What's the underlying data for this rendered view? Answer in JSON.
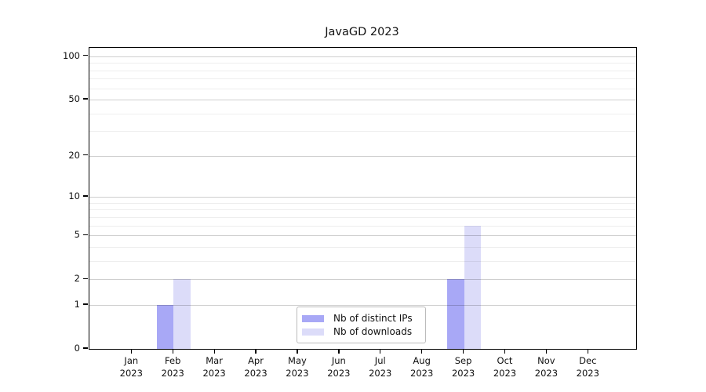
{
  "title": "JavaGD 2023",
  "chart_data": {
    "type": "bar",
    "title": "JavaGD 2023",
    "xlabel": "",
    "ylabel": "",
    "categories": [
      "Jan",
      "Feb",
      "Mar",
      "Apr",
      "May",
      "Jun",
      "Jul",
      "Aug",
      "Sep",
      "Oct",
      "Nov",
      "Dec"
    ],
    "category_year": "2023",
    "series": [
      {
        "name": "Nb of distinct IPs",
        "color": "#a8a8f6",
        "values": [
          0,
          1,
          0,
          0,
          0,
          0,
          0,
          0,
          2,
          0,
          0,
          0
        ]
      },
      {
        "name": "Nb of downloads",
        "color": "#dcdcf9",
        "values": [
          0,
          2,
          0,
          0,
          0,
          0,
          0,
          0,
          6,
          0,
          0,
          0
        ]
      }
    ],
    "y_scale": "log1p",
    "y_ticks": [
      0,
      1,
      2,
      5,
      10,
      20,
      50,
      100
    ],
    "y_minor_gridlines": [
      3,
      4,
      6,
      7,
      8,
      9,
      30,
      40,
      60,
      70,
      80,
      90
    ],
    "ylim": [
      0,
      110
    ],
    "grid": "horizontal",
    "legend_position": "inside-bottom-center"
  },
  "legend": {
    "items": [
      {
        "label": "Nb of distinct IPs",
        "color": "#a8a8f6"
      },
      {
        "label": "Nb of downloads",
        "color": "#dcdcf9"
      }
    ]
  }
}
